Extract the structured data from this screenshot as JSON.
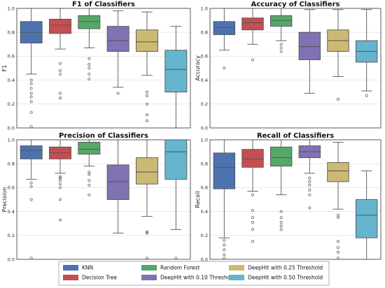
{
  "chart_data": [
    {
      "type": "box",
      "title": "F1 of Classifiers",
      "ylabel": "F1",
      "ylim": [
        0,
        1.0
      ],
      "yticks": [
        "0.0",
        "0.2",
        "0.4",
        "0.6",
        "0.8",
        "1.0"
      ],
      "boxes": [
        {
          "name": "KNN",
          "whislo": 0.45,
          "q1": 0.71,
          "med": 0.8,
          "q3": 0.89,
          "whishi": 1.0,
          "fliers": [
            0.4,
            0.37,
            0.33,
            0.29,
            0.26,
            0.22,
            0.13,
            0.01
          ]
        },
        {
          "name": "Decision Tree",
          "whislo": 0.66,
          "q1": 0.79,
          "med": 0.86,
          "q3": 0.91,
          "whishi": 1.0,
          "fliers": [
            0.54,
            0.48,
            0.45,
            0.29,
            0.25
          ]
        },
        {
          "name": "Random Forest",
          "whislo": 0.67,
          "q1": 0.83,
          "med": 0.89,
          "q3": 0.94,
          "whishi": 1.0,
          "fliers": [
            0.58,
            0.53,
            0.5,
            0.45,
            0.41
          ]
        },
        {
          "name": "DeepHit with 0.10 Threshold",
          "whislo": 0.34,
          "q1": 0.64,
          "med": 0.73,
          "q3": 0.85,
          "whishi": 0.98,
          "fliers": [
            0.29
          ]
        },
        {
          "name": "DeepHit with 0.25 Threshold",
          "whislo": 0.44,
          "q1": 0.64,
          "med": 0.72,
          "q3": 0.82,
          "whishi": 0.97,
          "fliers": [
            0.3,
            0.27,
            0.2,
            0.11,
            0.06
          ]
        },
        {
          "name": "DeepHit with 0.50 Threshold",
          "whislo": 0.0,
          "q1": 0.3,
          "med": 0.49,
          "q3": 0.65,
          "whishi": 0.85,
          "fliers": []
        }
      ]
    },
    {
      "type": "box",
      "title": "Accuracy of Classifiers",
      "ylabel": "Accuracy",
      "ylim": [
        0,
        1.0
      ],
      "yticks": [
        "0.0",
        "0.2",
        "0.4",
        "0.6",
        "0.8",
        "1.0"
      ],
      "boxes": [
        {
          "name": "KNN",
          "whislo": 0.65,
          "q1": 0.78,
          "med": 0.84,
          "q3": 0.89,
          "whishi": 1.0,
          "fliers": [
            0.5
          ]
        },
        {
          "name": "Decision Tree",
          "whislo": 0.7,
          "q1": 0.82,
          "med": 0.88,
          "q3": 0.92,
          "whishi": 1.0,
          "fliers": [
            0.57
          ]
        },
        {
          "name": "Random Forest",
          "whislo": 0.73,
          "q1": 0.85,
          "med": 0.9,
          "q3": 0.94,
          "whishi": 1.0,
          "fliers": [
            0.7,
            0.67,
            0.64
          ]
        },
        {
          "name": "DeepHit with 0.10 Threshold",
          "whislo": 0.29,
          "q1": 0.57,
          "med": 0.68,
          "q3": 0.8,
          "whishi": 0.99,
          "fliers": []
        },
        {
          "name": "DeepHit with 0.25 Threshold",
          "whislo": 0.43,
          "q1": 0.64,
          "med": 0.73,
          "q3": 0.82,
          "whishi": 0.99,
          "fliers": [
            0.24
          ]
        },
        {
          "name": "DeepHit with 0.50 Threshold",
          "whislo": 0.31,
          "q1": 0.55,
          "med": 0.64,
          "q3": 0.73,
          "whishi": 0.99,
          "fliers": [
            0.27
          ]
        }
      ]
    },
    {
      "type": "box",
      "title": "Precision of Classifiers",
      "ylabel": "Precision",
      "ylim": [
        0,
        1.0
      ],
      "yticks": [
        "0.0",
        "0.2",
        "0.4",
        "0.6",
        "0.8",
        "1.0"
      ],
      "boxes": [
        {
          "name": "KNN",
          "whislo": 0.67,
          "q1": 0.84,
          "med": 0.91,
          "q3": 0.95,
          "whishi": 1.0,
          "fliers": [
            0.64,
            0.61,
            0.5,
            0.01
          ]
        },
        {
          "name": "Decision Tree",
          "whislo": 0.72,
          "q1": 0.84,
          "med": 0.89,
          "q3": 0.94,
          "whishi": 1.0,
          "fliers": [
            0.69,
            0.68,
            0.66,
            0.63,
            0.6,
            0.5,
            0.33
          ]
        },
        {
          "name": "Random Forest",
          "whislo": 0.78,
          "q1": 0.88,
          "med": 0.92,
          "q3": 0.98,
          "whishi": 1.0,
          "fliers": [
            0.73,
            0.71,
            0.66,
            0.62,
            0.54
          ]
        },
        {
          "name": "DeepHit with 0.10 Threshold",
          "whislo": 0.22,
          "q1": 0.5,
          "med": 0.65,
          "q3": 0.79,
          "whishi": 1.0,
          "fliers": []
        },
        {
          "name": "DeepHit with 0.25 Threshold",
          "whislo": 0.36,
          "q1": 0.63,
          "med": 0.73,
          "q3": 0.85,
          "whishi": 1.0,
          "fliers": [
            0.23,
            0.22,
            0.01
          ]
        },
        {
          "name": "DeepHit with 0.50 Threshold",
          "whislo": 0.25,
          "q1": 0.67,
          "med": 0.9,
          "q3": 1.0,
          "whishi": 1.0,
          "fliers": [
            0.01
          ]
        }
      ]
    },
    {
      "type": "box",
      "title": "Recall of Classifiers",
      "ylabel": "Recall",
      "ylim": [
        0,
        1.0
      ],
      "yticks": [
        "0.0",
        "0.2",
        "0.4",
        "0.6",
        "0.8",
        "1.0"
      ],
      "boxes": [
        {
          "name": "KNN",
          "whislo": 0.18,
          "q1": 0.59,
          "med": 0.77,
          "q3": 0.89,
          "whishi": 1.0,
          "fliers": [
            0.16,
            0.12,
            0.08,
            0.04,
            0.01
          ]
        },
        {
          "name": "Decision Tree",
          "whislo": 0.57,
          "q1": 0.77,
          "med": 0.84,
          "q3": 0.92,
          "whishi": 1.0,
          "fliers": [
            0.54,
            0.41,
            0.35,
            0.31,
            0.25,
            0.15
          ]
        },
        {
          "name": "Random Forest",
          "whislo": 0.54,
          "q1": 0.78,
          "med": 0.85,
          "q3": 0.94,
          "whishi": 1.0,
          "fliers": [
            0.4,
            0.35,
            0.31,
            0.28,
            0.25
          ]
        },
        {
          "name": "DeepHit with 0.10 Threshold",
          "whislo": 0.72,
          "q1": 0.85,
          "med": 0.9,
          "q3": 0.95,
          "whishi": 1.0,
          "fliers": [
            0.68,
            0.65,
            0.62,
            0.58,
            0.54,
            0.43
          ]
        },
        {
          "name": "DeepHit with 0.25 Threshold",
          "whislo": 0.42,
          "q1": 0.65,
          "med": 0.74,
          "q3": 0.81,
          "whishi": 0.98,
          "fliers": [
            0.37,
            0.35,
            0.15,
            0.1,
            0.06,
            0.01
          ]
        },
        {
          "name": "DeepHit with 0.50 Threshold",
          "whislo": 0.0,
          "q1": 0.18,
          "med": 0.37,
          "q3": 0.5,
          "whishi": 0.74,
          "fliers": []
        }
      ]
    }
  ],
  "legend": {
    "placement": "bottom-center",
    "items": [
      {
        "label": "KNN",
        "color": "#4c72b0"
      },
      {
        "label": "Decision Tree",
        "color": "#c44e52"
      },
      {
        "label": "Random Forest",
        "color": "#55a868"
      },
      {
        "label": "DeepHit with 0.10 Threshold",
        "color": "#8172b3"
      },
      {
        "label": "DeepHit with 0.25 Threshold",
        "color": "#ccb974"
      },
      {
        "label": "DeepHit with 0.50 Threshold",
        "color": "#64b5cd"
      }
    ]
  },
  "grid": "y",
  "x_tick_labels": "none"
}
